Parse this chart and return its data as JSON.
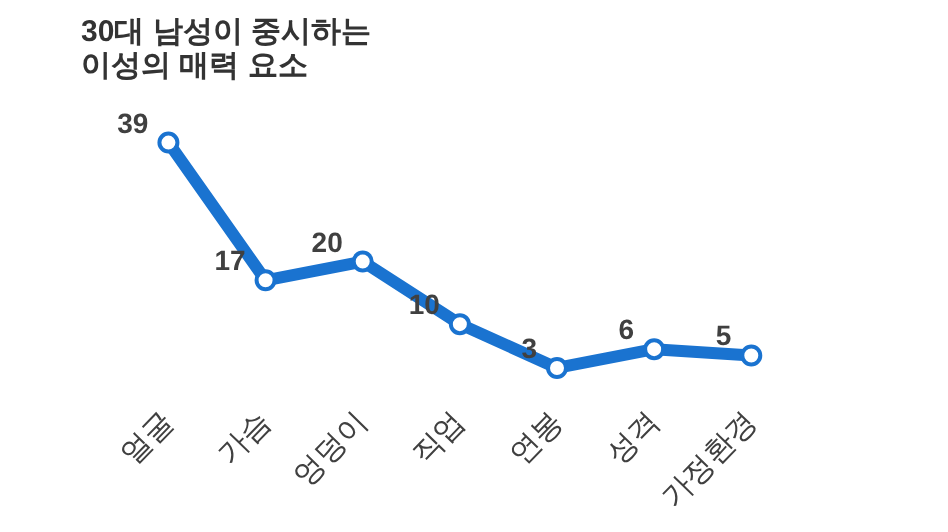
{
  "chart_data": {
    "type": "line",
    "title": "30대 남성이 중시하는\n이성의 매력 요소",
    "categories": [
      "얼굴",
      "가슴",
      "엉덩이",
      "직업",
      "연봉",
      "성격",
      "가정환경"
    ],
    "series": [
      {
        "color": "#1a73d0",
        "values": [
          39,
          17,
          20,
          10,
          3,
          6,
          5
        ]
      }
    ],
    "data_labels": true,
    "marker": "circle",
    "grid": false,
    "tick_labels": "x"
  }
}
